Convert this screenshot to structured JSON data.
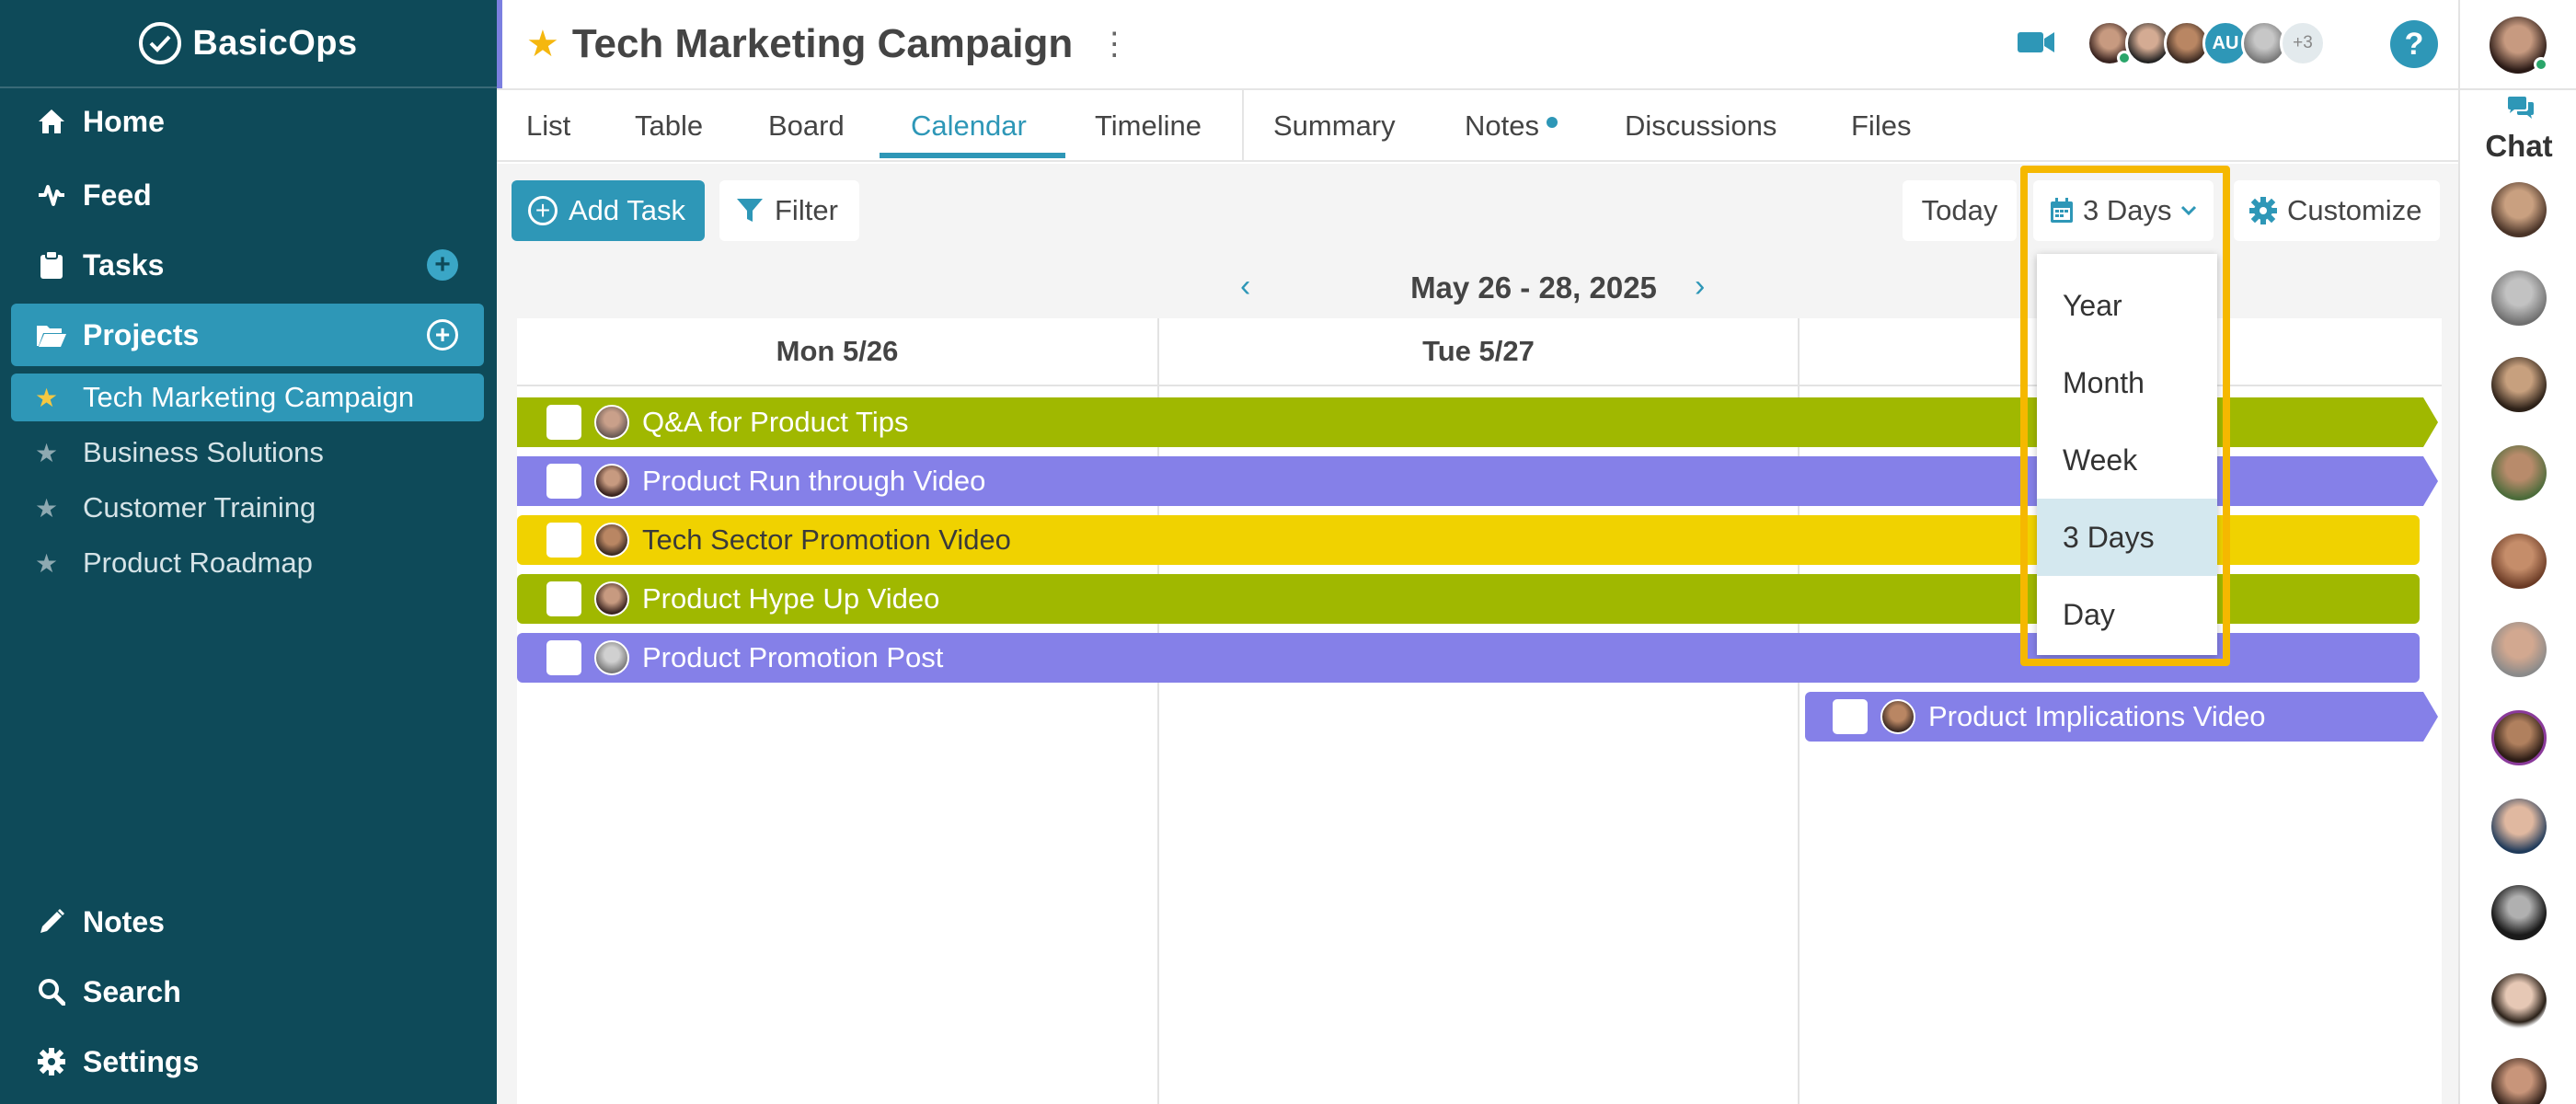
{
  "app": {
    "name": "BasicOps"
  },
  "sidebar": {
    "nav": [
      {
        "label": "Home"
      },
      {
        "label": "Feed"
      },
      {
        "label": "Tasks"
      },
      {
        "label": "Projects"
      }
    ],
    "projects": [
      {
        "label": "Tech Marketing Campaign",
        "active": true
      },
      {
        "label": "Business Solutions"
      },
      {
        "label": "Customer Training"
      },
      {
        "label": "Product Roadmap"
      }
    ],
    "bottom": [
      {
        "label": "Notes"
      },
      {
        "label": "Search"
      },
      {
        "label": "Settings"
      }
    ]
  },
  "header": {
    "title": "Tech Marketing Campaign",
    "avatar_initials": "AU",
    "avatar_more": "+3",
    "help": "?"
  },
  "tabs": [
    {
      "label": "List"
    },
    {
      "label": "Table"
    },
    {
      "label": "Board"
    },
    {
      "label": "Calendar",
      "active": true
    },
    {
      "label": "Timeline"
    },
    {
      "label": "Summary"
    },
    {
      "label": "Notes"
    },
    {
      "label": "Discussions"
    },
    {
      "label": "Files"
    }
  ],
  "toolbar": {
    "add_task": "Add Task",
    "filter": "Filter",
    "today": "Today",
    "view_select": "3 Days",
    "customize": "Customize"
  },
  "calendar": {
    "range": "May 26 - 28, 2025",
    "columns": [
      "Mon 5/26",
      "Tue 5/27"
    ],
    "tasks": [
      {
        "label": "Q&A for Product Tips",
        "color": "#a0b800"
      },
      {
        "label": "Product Run through Video",
        "color": "#8580e8"
      },
      {
        "label": "Tech Sector Promotion Video",
        "color": "#f0d200"
      },
      {
        "label": "Product Hype Up Video",
        "color": "#a0b800"
      },
      {
        "label": "Product Promotion Post",
        "color": "#8580e8"
      },
      {
        "label": "Product Implications Video",
        "color": "#8580e8"
      }
    ]
  },
  "view_dropdown": {
    "options": [
      "Year",
      "Month",
      "Week",
      "3 Days",
      "Day"
    ],
    "selected": "3 Days"
  },
  "chat": {
    "label": "Chat"
  },
  "colors": {
    "sidebar": "#0e4a59",
    "accent": "#2e97b7",
    "highlight": "#f5b800"
  }
}
